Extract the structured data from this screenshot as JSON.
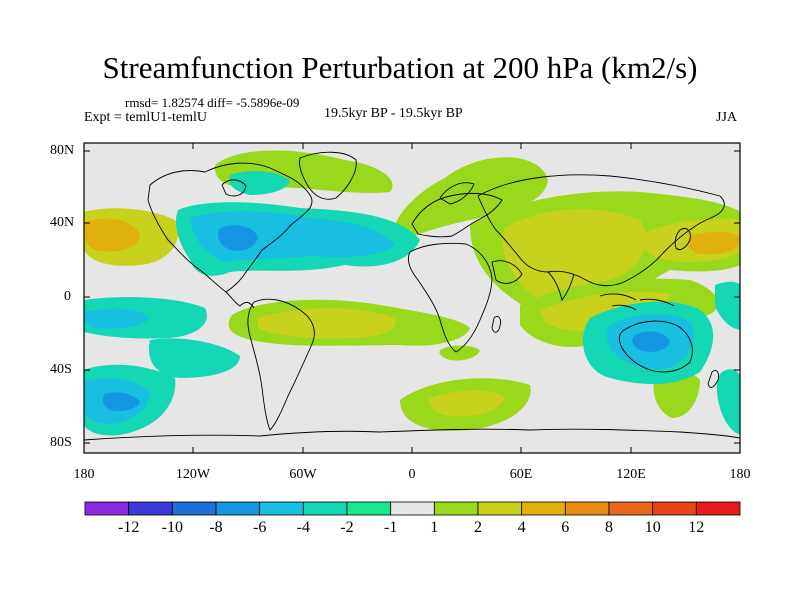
{
  "title": "Streamfunction Perturbation at 200 hPa (km2/s)",
  "stats": "rmsd= 1.82574  diff= -5.5896e-09",
  "expt": "Expt = temlU1-temlU",
  "period": "19.5kyr BP - 19.5kyr BP",
  "season": "JJA",
  "y_axis_labels": [
    "80N",
    "40N",
    "0",
    "40S",
    "80S"
  ],
  "x_axis_labels": [
    "180",
    "120W",
    "60W",
    "0",
    "60E",
    "120E",
    "180"
  ],
  "colorbar": {
    "labels": [
      "-12",
      "-10",
      "-8",
      "-6",
      "-4",
      "-2",
      "-1",
      "1",
      "2",
      "4",
      "6",
      "8",
      "10",
      "12"
    ],
    "colors": [
      "#8a2be2",
      "#3a3ad8",
      "#1f6fd8",
      "#1496e0",
      "#18bfe0",
      "#14d8b4",
      "#18e88c",
      "#e6e6e6",
      "#9ad81c",
      "#c8d21c",
      "#e0b00c",
      "#e88c14",
      "#e8661a",
      "#e8441a",
      "#e81a1a"
    ]
  },
  "colors": {
    "ocean_background": "#e6e6e6",
    "coastline": "#000000"
  }
}
